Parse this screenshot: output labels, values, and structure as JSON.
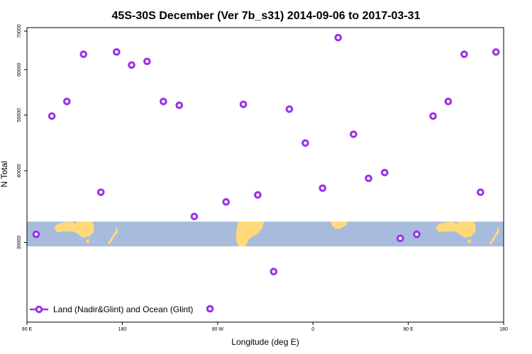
{
  "chart_data": {
    "type": "scatter",
    "title": "45S-30S December (Ver 7b_s31)   2014-09-06 to 2017-03-31",
    "xlabel": "Longitude (deg E)",
    "ylabel": "N Total",
    "x_ticks": [
      {
        "value": 90,
        "label": "90 E"
      },
      {
        "value": 180,
        "label": "180"
      },
      {
        "value": 270,
        "label": "90 W"
      },
      {
        "value": 360,
        "label": "0"
      },
      {
        "value": 450,
        "label": "90 E"
      },
      {
        "value": 540,
        "label": "180"
      }
    ],
    "y_ticks": [
      30000,
      40000,
      50000,
      60000,
      70000
    ],
    "y_tick_labels": [
      "30000",
      "40000",
      "50000",
      "60000",
      "70000"
    ],
    "xlim": [
      90,
      540
    ],
    "ylim": [
      21800,
      71000
    ],
    "y_scale": "log",
    "legend": {
      "position": "bottom-left",
      "label": "Land (Nadir&Glint) and Ocean (Glint)"
    },
    "colors": {
      "marker": "#9b30e6",
      "ocean_band": "#a7bbdc",
      "land": "#ffd97a"
    },
    "series": [
      {
        "name": "Land (Nadir&Glint) and Ocean (Glint)",
        "points": [
          {
            "x": 98.7,
            "y": 31000
          },
          {
            "x": 113.5,
            "y": 49800
          },
          {
            "x": 127.7,
            "y": 52800
          },
          {
            "x": 143.4,
            "y": 63800
          },
          {
            "x": 159.8,
            "y": 36700
          },
          {
            "x": 174.6,
            "y": 64400
          },
          {
            "x": 188.8,
            "y": 61100
          },
          {
            "x": 203.4,
            "y": 62000
          },
          {
            "x": 218.8,
            "y": 52800
          },
          {
            "x": 233.8,
            "y": 52000
          },
          {
            "x": 248.0,
            "y": 33300
          },
          {
            "x": 262.8,
            "y": 23000
          },
          {
            "x": 278.0,
            "y": 35300
          },
          {
            "x": 294.3,
            "y": 52200
          },
          {
            "x": 307.9,
            "y": 36300
          },
          {
            "x": 322.9,
            "y": 26700
          },
          {
            "x": 337.7,
            "y": 51200
          },
          {
            "x": 352.8,
            "y": 44700
          },
          {
            "x": 369.1,
            "y": 37300
          },
          {
            "x": 383.8,
            "y": 68200
          },
          {
            "x": 398.3,
            "y": 46300
          },
          {
            "x": 412.5,
            "y": 38800
          },
          {
            "x": 427.7,
            "y": 39700
          },
          {
            "x": 442.5,
            "y": 30500
          },
          {
            "x": 458.0,
            "y": 31000
          },
          {
            "x": 473.4,
            "y": 49800
          },
          {
            "x": 487.7,
            "y": 52800
          },
          {
            "x": 502.8,
            "y": 63800
          },
          {
            "x": 518.2,
            "y": 36700
          },
          {
            "x": 532.8,
            "y": 64400
          }
        ]
      }
    ]
  }
}
